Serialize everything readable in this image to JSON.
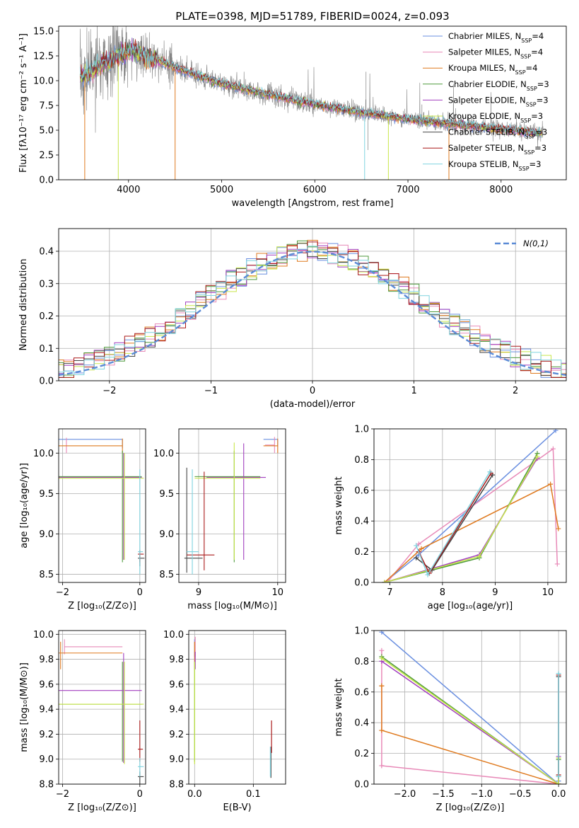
{
  "colors": {
    "chabrier_miles": "#6a8fe0",
    "salpeter_miles": "#e88ab8",
    "kroupa_miles": "#df7a1f",
    "chabrier_elodie": "#4f9a3c",
    "salpeter_elodie": "#a23fbf",
    "kroupa_elodie": "#c8e64a",
    "chabrier_stelib": "#444444",
    "salpeter_stelib": "#aa1a1a",
    "kroupa_stelib": "#7fd3df",
    "data_gray": "#808080",
    "normal_curve": "#5b8bd6",
    "grid": "#b0b0b0"
  },
  "chart_data": [
    {
      "id": "spectrum",
      "type": "line",
      "title": "PLATE=0398, MJD=51789, FIBERID=0024, z=0.093",
      "xlabel": "wavelength [Angstrom, rest frame]",
      "ylabel": "Flux [fλ10⁻¹⁷ erg cm⁻² s⁻¹ A⁻¹]",
      "xlim": [
        3250,
        8700
      ],
      "ylim": [
        0,
        15.5
      ],
      "xticks": [
        4000,
        5000,
        6000,
        7000,
        8000
      ],
      "yticks": [
        0.0,
        2.5,
        5.0,
        7.5,
        10.0,
        12.5,
        15.0
      ],
      "ytick_labels": [
        "0.0",
        "2.5",
        "5.0",
        "7.5",
        "10.0",
        "12.5",
        "15.0"
      ],
      "grid": false,
      "legend_position": "top-right",
      "model_continuum": {
        "x": [
          3500,
          3700,
          3900,
          4050,
          4300,
          4600,
          5000,
          5500,
          6000,
          6500,
          7000,
          7500,
          8000,
          8450
        ],
        "y": [
          10.3,
          11.6,
          12.5,
          13.0,
          12.1,
          11.0,
          9.7,
          8.6,
          7.6,
          6.8,
          6.1,
          5.6,
          5.1,
          4.7
        ]
      },
      "data_ranges": {
        "x_start": 3480,
        "x_end": 8450,
        "max_flux": 15.5
      },
      "legend": [
        {
          "label": "Chabrier MILES, N",
          "sub": "SSP",
          "suffix": "=4",
          "color_key": "chabrier_miles"
        },
        {
          "label": "Salpeter MILES, N",
          "sub": "SSP",
          "suffix": "=4",
          "color_key": "salpeter_miles"
        },
        {
          "label": "Kroupa MILES, N",
          "sub": "SSP",
          "suffix": "=4",
          "color_key": "kroupa_miles"
        },
        {
          "label": "Chabrier ELODIE, N",
          "sub": "SSP",
          "suffix": "=3",
          "color_key": "chabrier_elodie"
        },
        {
          "label": "Salpeter ELODIE, N",
          "sub": "SSP",
          "suffix": "=3",
          "color_key": "salpeter_elodie"
        },
        {
          "label": "Kroupa ELODIE, N",
          "sub": "SSP",
          "suffix": "=3",
          "color_key": "kroupa_elodie"
        },
        {
          "label": "Chabrier STELIB, N",
          "sub": "SSP",
          "suffix": "=3",
          "color_key": "chabrier_stelib"
        },
        {
          "label": "Salpeter STELIB, N",
          "sub": "SSP",
          "suffix": "=3",
          "color_key": "salpeter_stelib"
        },
        {
          "label": "Kroupa STELIB, N",
          "sub": "SSP",
          "suffix": "=3",
          "color_key": "kroupa_stelib"
        }
      ]
    },
    {
      "id": "residuals",
      "type": "line",
      "xlabel": "(data-model)/error",
      "ylabel": "Normed distribution",
      "xlim": [
        -2.5,
        2.5
      ],
      "ylim": [
        0,
        0.47
      ],
      "xticks": [
        -2,
        -1,
        0,
        1,
        2
      ],
      "xtick_labels": [
        "−2",
        "−1",
        "0",
        "1",
        "2"
      ],
      "yticks": [
        0.0,
        0.1,
        0.2,
        0.3,
        0.4
      ],
      "ytick_labels": [
        "0.0",
        "0.1",
        "0.2",
        "0.3",
        "0.4"
      ],
      "grid": true,
      "legend_position": "top-right",
      "legend": [
        {
          "label": "N(0,1)",
          "color_key": "normal_curve",
          "style": "dashed"
        }
      ],
      "bin_width": 0.1
    },
    {
      "id": "age_vs_Z",
      "type": "scatter",
      "xlabel": "Z [log₁₀(Z/Z⊙)]",
      "ylabel": "age  [log₁₀(age/yr)]",
      "xlim": [
        -2.1,
        0.15
      ],
      "ylim": [
        8.4,
        10.3
      ],
      "xticks": [
        -2,
        0
      ],
      "xtick_labels": [
        "−2",
        "0"
      ],
      "yticks": [
        8.5,
        9.0,
        9.5,
        10.0
      ],
      "ytick_labels": [
        "8.5",
        "9.0",
        "9.5",
        "10.0"
      ],
      "grid": true,
      "crosses": [
        {
          "c": "chabrier_miles",
          "x0": -2.3,
          "x1": -0.45,
          "y": 10.17,
          "y0": 10.06,
          "y1": 10.17
        },
        {
          "c": "salpeter_miles",
          "x0": -2.0,
          "x1": -2.0,
          "y": 10.09,
          "y0": 10.0,
          "y1": 10.19,
          "xa": -1.9
        },
        {
          "c": "kroupa_miles",
          "x0": -2.3,
          "x1": -0.45,
          "y": 10.09,
          "y0": 10.0,
          "y1": 10.18
        },
        {
          "c": "chabrier_elodie",
          "x0": -2.3,
          "x1": 0.05,
          "y": 9.71,
          "xm": -0.45,
          "y0": 8.65,
          "y1": 10.03
        },
        {
          "c": "salpeter_elodie",
          "x0": -2.3,
          "x1": 0.05,
          "y": 9.7,
          "xm": -0.42,
          "y0": 8.68,
          "y1": 10.0
        },
        {
          "c": "kroupa_elodie",
          "x0": -2.3,
          "x1": 0.1,
          "y": 9.69,
          "xm": -0.4,
          "y0": 8.68,
          "y1": 10.0
        },
        {
          "c": "chabrier_stelib",
          "x0": -0.05,
          "x1": 0.12,
          "y": 8.7,
          "xm": 0.0,
          "y0": 8.6,
          "y1": 8.75
        },
        {
          "c": "salpeter_stelib",
          "x0": -0.05,
          "x1": 0.1,
          "y": 8.75,
          "xm": 0.0,
          "y0": 8.65,
          "y1": 8.8
        },
        {
          "c": "kroupa_stelib",
          "x0": -0.05,
          "x1": 0.08,
          "y": 8.78,
          "xm": 0.0,
          "y0": 8.5,
          "y1": 9.8
        }
      ]
    },
    {
      "id": "age_vs_mass",
      "type": "scatter",
      "xlabel": "mass [log₁₀(M/M⊙)]",
      "ylabel": "",
      "xlim": [
        8.75,
        10.1
      ],
      "ylim": [
        8.4,
        10.3
      ],
      "xticks": [
        9,
        10
      ],
      "xtick_labels": [
        "9",
        "10"
      ],
      "yticks": [
        8.5,
        9.0,
        9.5,
        10.0
      ],
      "ytick_labels": [
        "8.5",
        "9.0",
        "9.5",
        "10.0"
      ],
      "grid": true,
      "crosses": [
        {
          "c": "chabrier_miles",
          "x0": 9.82,
          "x1": 10.0,
          "y": 10.17,
          "y0": 10.08,
          "y1": 10.17
        },
        {
          "c": "salpeter_miles",
          "x0": 9.84,
          "x1": 9.96,
          "y": 10.1,
          "y0": 10.0,
          "y1": 10.2
        },
        {
          "c": "kroupa_miles",
          "x0": 9.82,
          "x1": 10.0,
          "y": 10.09,
          "y0": 10.0,
          "y1": 10.18
        },
        {
          "c": "chabrier_elodie",
          "x0": 8.95,
          "x1": 9.78,
          "y": 9.71,
          "xm": 9.45,
          "y0": 8.65,
          "y1": 10.03
        },
        {
          "c": "salpeter_elodie",
          "x0": 9.1,
          "x1": 9.85,
          "y": 9.7,
          "xm": 9.57,
          "y0": 8.68,
          "y1": 10.12
        },
        {
          "c": "kroupa_elodie",
          "x0": 8.95,
          "x1": 9.78,
          "y": 9.69,
          "xm": 9.45,
          "y0": 8.68,
          "y1": 10.13
        },
        {
          "c": "chabrier_stelib",
          "x0": 8.82,
          "x1": 9.05,
          "y": 8.7,
          "xm": 8.85,
          "y0": 8.52,
          "y1": 9.82
        },
        {
          "c": "salpeter_stelib",
          "x0": 8.85,
          "x1": 9.2,
          "y": 8.74,
          "xm": 9.07,
          "y0": 8.55,
          "y1": 9.77
        },
        {
          "c": "kroupa_stelib",
          "x0": 8.85,
          "x1": 9.0,
          "y": 8.78,
          "xm": 8.92,
          "y0": 8.5,
          "y1": 9.8
        }
      ]
    },
    {
      "id": "weight_vs_age",
      "type": "line",
      "xlabel": "age  [log₁₀(age/yr)]",
      "ylabel": "mass weight",
      "xlim": [
        6.7,
        10.35
      ],
      "ylim": [
        0,
        1
      ],
      "xticks": [
        7,
        8,
        9,
        10
      ],
      "yticks": [
        0.0,
        0.2,
        0.4,
        0.6,
        0.8,
        1.0
      ],
      "ytick_labels": [
        "0.0",
        "0.2",
        "0.4",
        "0.6",
        "0.8",
        "1.0"
      ],
      "grid": true,
      "series": [
        {
          "c": "chabrier_miles",
          "x": [
            6.9,
            7.55,
            10.15
          ],
          "y": [
            0.0,
            0.18,
            0.99
          ]
        },
        {
          "c": "salpeter_miles",
          "x": [
            6.95,
            7.55,
            10.1,
            10.18
          ],
          "y": [
            0.0,
            0.25,
            0.87,
            0.12
          ]
        },
        {
          "c": "kroupa_miles",
          "x": [
            6.9,
            7.6,
            10.05,
            10.2
          ],
          "y": [
            0.0,
            0.22,
            0.64,
            0.35
          ]
        },
        {
          "c": "chabrier_elodie",
          "x": [
            6.9,
            8.7,
            9.8
          ],
          "y": [
            0.0,
            0.16,
            0.84
          ]
        },
        {
          "c": "salpeter_elodie",
          "x": [
            6.9,
            8.7,
            9.8
          ],
          "y": [
            0.0,
            0.18,
            0.81
          ]
        },
        {
          "c": "kroupa_elodie",
          "x": [
            6.9,
            8.7,
            9.8
          ],
          "y": [
            0.0,
            0.17,
            0.82
          ]
        },
        {
          "c": "chabrier_stelib",
          "x": [
            7.5,
            7.8,
            8.95
          ],
          "y": [
            0.16,
            0.08,
            0.7
          ]
        },
        {
          "c": "salpeter_stelib",
          "x": [
            7.55,
            7.75,
            8.92
          ],
          "y": [
            0.2,
            0.06,
            0.71
          ]
        },
        {
          "c": "kroupa_stelib",
          "x": [
            7.5,
            7.72,
            8.9
          ],
          "y": [
            0.24,
            0.05,
            0.72
          ]
        }
      ]
    },
    {
      "id": "mass_vs_Z",
      "type": "scatter",
      "xlabel": "Z [log₁₀(Z/Z⊙)]",
      "ylabel": "mass [log₁₀(M/M⊙)]",
      "xlim": [
        -2.1,
        0.15
      ],
      "ylim": [
        8.8,
        10.03
      ],
      "xticks": [
        -2,
        0
      ],
      "xtick_labels": [
        "−2",
        "0"
      ],
      "yticks": [
        8.8,
        9.0,
        9.2,
        9.4,
        9.6,
        9.8,
        10.0
      ],
      "ytick_labels": [
        "8.8",
        "9.0",
        "9.2",
        "9.4",
        "9.6",
        "9.8",
        "10.0"
      ],
      "grid": true,
      "crosses": [
        {
          "c": "chabrier_miles",
          "x0": -2.3,
          "x1": -2.3,
          "y": 9.9,
          "y0": 9.82,
          "y1": 9.96
        },
        {
          "c": "salpeter_miles",
          "x0": -1.95,
          "x1": -0.45,
          "y": 9.9,
          "xm": -1.95,
          "y0": 9.84,
          "y1": 9.96
        },
        {
          "c": "kroupa_miles",
          "x0": -2.3,
          "x1": -0.45,
          "y": 9.85,
          "xm": -2.05,
          "y0": 9.72,
          "y1": 9.94
        },
        {
          "c": "chabrier_elodie",
          "x0": -2.3,
          "x1": 0.05,
          "y": 9.44,
          "xm": -0.45,
          "y0": 8.98,
          "y1": 9.78
        },
        {
          "c": "salpeter_elodie",
          "x0": -2.3,
          "x1": 0.05,
          "y": 9.55,
          "xm": -0.42,
          "y0": 8.97,
          "y1": 9.85
        },
        {
          "c": "kroupa_elodie",
          "x0": -2.3,
          "x1": 0.1,
          "y": 9.44,
          "xm": -0.4,
          "y0": 8.96,
          "y1": 9.78
        },
        {
          "c": "chabrier_stelib",
          "x0": -0.05,
          "x1": 0.1,
          "y": 8.86,
          "xm": 0.0,
          "y0": 8.8,
          "y1": 8.9
        },
        {
          "c": "salpeter_stelib",
          "x0": -0.05,
          "x1": 0.08,
          "y": 9.08,
          "xm": 0.0,
          "y0": 8.98,
          "y1": 9.31
        },
        {
          "c": "kroupa_stelib",
          "x0": -0.05,
          "x1": 0.1,
          "y": 8.94,
          "xm": 0.0,
          "y0": 8.86,
          "y1": 9.01
        }
      ]
    },
    {
      "id": "mass_vs_ebv",
      "type": "scatter",
      "xlabel": "E(B-V)",
      "ylabel": "",
      "xlim": [
        -0.01,
        0.155
      ],
      "ylim": [
        8.8,
        10.03
      ],
      "xticks": [
        0.0,
        0.1
      ],
      "xtick_labels": [
        "0.0",
        "0.1"
      ],
      "yticks": [
        8.8,
        9.0,
        9.2,
        9.4,
        9.6,
        9.8,
        10.0
      ],
      "ytick_labels": [
        "8.8",
        "9.0",
        "9.2",
        "9.4",
        "9.6",
        "9.8",
        "10.0"
      ],
      "grid": true,
      "verticals": [
        {
          "c": "chabrier_miles",
          "x": 0.0,
          "y0": 9.82,
          "y1": 9.96
        },
        {
          "c": "salpeter_miles",
          "x": 0.001,
          "y0": 9.82,
          "y1": 9.98
        },
        {
          "c": "kroupa_miles",
          "x": 0.0,
          "y0": 9.72,
          "y1": 9.94
        },
        {
          "c": "chabrier_elodie",
          "x": 0.0,
          "y0": 8.98,
          "y1": 9.78
        },
        {
          "c": "salpeter_elodie",
          "x": 0.001,
          "y0": 9.72,
          "y1": 9.86
        },
        {
          "c": "kroupa_elodie",
          "x": 0.0,
          "y0": 8.96,
          "y1": 9.78
        },
        {
          "c": "chabrier_stelib",
          "x": 0.13,
          "y0": 8.85,
          "y1": 9.1
        },
        {
          "c": "salpeter_stelib",
          "x": 0.131,
          "y0": 9.05,
          "y1": 9.31
        },
        {
          "c": "kroupa_stelib",
          "x": 0.129,
          "y0": 8.86,
          "y1": 9.1
        }
      ]
    },
    {
      "id": "weight_vs_Z",
      "type": "line",
      "xlabel": "Z [log₁₀(Z/Z⊙)]",
      "ylabel": "mass weight",
      "xlim": [
        -2.4,
        0.1
      ],
      "ylim": [
        0,
        1
      ],
      "xticks": [
        -2.0,
        -1.5,
        -1.0,
        -0.5,
        0.0
      ],
      "xtick_labels": [
        "−2.0",
        "−1.5",
        "−1.0",
        "−0.5",
        "0.0"
      ],
      "yticks": [
        0.0,
        0.2,
        0.4,
        0.6,
        0.8,
        1.0
      ],
      "ytick_labels": [
        "0.0",
        "0.2",
        "0.4",
        "0.6",
        "0.8",
        "1.0"
      ],
      "grid": true,
      "series": [
        {
          "c": "chabrier_miles",
          "x": [
            -2.3,
            0.0,
            0.0
          ],
          "y": [
            0.99,
            0.0,
            0.02
          ]
        },
        {
          "c": "salpeter_miles",
          "x": [
            -2.3,
            -2.3,
            0.0,
            -2.3
          ],
          "y": [
            0.87,
            0.12,
            0.0,
            0.12
          ]
        },
        {
          "c": "kroupa_miles",
          "x": [
            -2.3,
            -2.3,
            0.0,
            -2.3,
            -2.3
          ],
          "y": [
            0.64,
            0.35,
            0.0,
            0.35,
            0.64
          ]
        },
        {
          "c": "chabrier_elodie",
          "x": [
            -2.3,
            0.0,
            0.0
          ],
          "y": [
            0.83,
            0.0,
            0.16
          ]
        },
        {
          "c": "salpeter_elodie",
          "x": [
            -2.3,
            0.0,
            0.0
          ],
          "y": [
            0.8,
            0.0,
            0.18
          ]
        },
        {
          "c": "kroupa_elodie",
          "x": [
            -2.3,
            0.0,
            0.0
          ],
          "y": [
            0.82,
            0.0,
            0.17
          ]
        },
        {
          "c": "chabrier_stelib",
          "x": [
            0.0,
            0.0
          ],
          "y": [
            0.05,
            0.7
          ]
        },
        {
          "c": "salpeter_stelib",
          "x": [
            0.0,
            0.0
          ],
          "y": [
            0.06,
            0.71
          ]
        },
        {
          "c": "kroupa_stelib",
          "x": [
            0.0,
            0.0
          ],
          "y": [
            0.05,
            0.72
          ]
        }
      ]
    }
  ]
}
